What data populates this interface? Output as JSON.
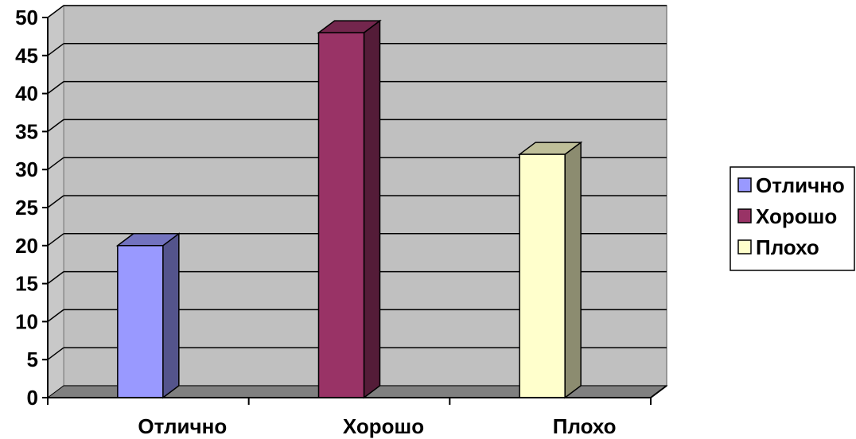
{
  "chart_data": {
    "type": "bar",
    "title": "",
    "xlabel": "",
    "ylabel": "",
    "categories": [
      "Отлично",
      "Хорошо",
      "Плохо"
    ],
    "values": [
      20,
      48,
      32
    ],
    "ylim": [
      0,
      50
    ],
    "yticks": [
      "0",
      "5",
      "10",
      "15",
      "20",
      "25",
      "30",
      "35",
      "40",
      "45",
      "50"
    ],
    "grid": true,
    "three_d": true,
    "legend_position": "right",
    "legend": [
      {
        "label": "Отлично",
        "color": "#9999ff"
      },
      {
        "label": "Хорошо",
        "color": "#993366"
      },
      {
        "label": "Плохо",
        "color": "#ffffcc"
      }
    ],
    "colors": {
      "plot_wall": "#c0c0c0",
      "floor": "#808080",
      "grid": "#000000"
    }
  }
}
